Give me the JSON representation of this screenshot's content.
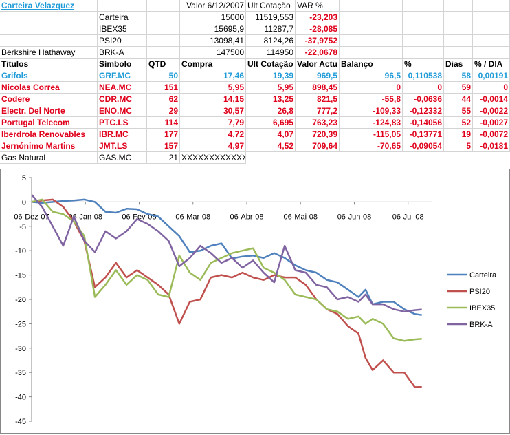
{
  "sheet": {
    "title": "Carteira Velazquez",
    "header_values": {
      "valor": "Valor 6/12/2007",
      "ult": "Ult Cotação",
      "var": "VAR %"
    },
    "summary": [
      {
        "name": "",
        "symbol": "Carteira",
        "valor": "15000",
        "ult": "11519,553",
        "var": "-23,203"
      },
      {
        "name": "",
        "symbol": "IBEX35",
        "valor": "15695,9",
        "ult": "11287,7",
        "var": "-28,085"
      },
      {
        "name": "",
        "symbol": "PSI20",
        "valor": "13098,41",
        "ult": "8124,26",
        "var": "-37,9752"
      },
      {
        "name": "Berkshire Hathaway",
        "symbol": "BRK-A",
        "valor": "147500",
        "ult": "114950",
        "var": "-22,0678"
      }
    ],
    "columns": [
      "Titulos",
      "Símbolo",
      "QTD",
      "Compra",
      "Ult Cotação",
      "Valor Actu",
      "Balanço",
      "%",
      "Dias",
      "% / DIA"
    ],
    "rows": [
      {
        "name": "Grifols",
        "symbol": "GRF.MC",
        "qtd": "50",
        "compra": "17,46",
        "ult": "19,39",
        "valor": "969,5",
        "balanco": "96,5",
        "pct": "0,110538",
        "dias": "58",
        "pctdia": "0,00191",
        "color": "blue"
      },
      {
        "name": "Nicolas Correa",
        "symbol": "NEA.MC",
        "qtd": "151",
        "compra": "5,95",
        "ult": "5,95",
        "valor": "898,45",
        "balanco": "0",
        "pct": "0",
        "dias": "59",
        "pctdia": "0",
        "color": "red"
      },
      {
        "name": "Codere",
        "symbol": "CDR.MC",
        "qtd": "62",
        "compra": "14,15",
        "ult": "13,25",
        "valor": "821,5",
        "balanco": "-55,8",
        "pct": "-0,0636",
        "dias": "44",
        "pctdia": "-0,0014",
        "color": "red"
      },
      {
        "name": "Electr. Del Norte",
        "symbol": "ENO.MC",
        "qtd": "29",
        "compra": "30,57",
        "ult": "26,8",
        "valor": "777,2",
        "balanco": "-109,33",
        "pct": "-0,12332",
        "dias": "55",
        "pctdia": "-0,0022",
        "color": "red"
      },
      {
        "name": "Portugal Telecom",
        "symbol": "PTC.LS",
        "qtd": "114",
        "compra": "7,79",
        "ult": "6,695",
        "valor": "763,23",
        "balanco": "-124,83",
        "pct": "-0,14056",
        "dias": "52",
        "pctdia": "-0,0027",
        "color": "red"
      },
      {
        "name": "Iberdrola Renovables",
        "symbol": "IBR.MC",
        "qtd": "177",
        "compra": "4,72",
        "ult": "4,07",
        "valor": "720,39",
        "balanco": "-115,05",
        "pct": "-0,13771",
        "dias": "19",
        "pctdia": "-0,0072",
        "color": "red"
      },
      {
        "name": "Jernónimo Martins",
        "symbol": "JMT.LS",
        "qtd": "157",
        "compra": "4,97",
        "ult": "4,52",
        "valor": "709,64",
        "balanco": "-70,65",
        "pct": "-0,09054",
        "dias": "5",
        "pctdia": "-0,0181",
        "color": "red"
      }
    ],
    "gas": {
      "name": "Gas Natural",
      "symbol": "GAS.MC",
      "qtd": "21",
      "compra": "XXXXXXXXXXXXX"
    }
  },
  "colors": {
    "carteira": "#4f81bd",
    "psi20": "#c0504d",
    "ibex35": "#9bbb59",
    "brka": "#8064a2",
    "blue_text": "#1f9bd8",
    "red_text": "#e0001b"
  },
  "chart_data": {
    "type": "line",
    "title": "",
    "ylim": [
      -45,
      5
    ],
    "yticks": [
      5,
      0,
      -5,
      -10,
      -15,
      -20,
      -25,
      -30,
      -35,
      -40,
      -45
    ],
    "xticks": [
      "06-Dez-07",
      "06-Jan-08",
      "06-Fev-08",
      "06-Mar-08",
      "06-Abr-08",
      "06-Mai-08",
      "06-Jun-08",
      "06-Jul-08"
    ],
    "xrange": [
      0,
      228
    ],
    "series": [
      {
        "name": "Carteira",
        "key": "carteira",
        "points": [
          [
            0,
            0
          ],
          [
            6,
            -0.2
          ],
          [
            12,
            0
          ],
          [
            18,
            0.2
          ],
          [
            24,
            0.3
          ],
          [
            30,
            0.5
          ],
          [
            36,
            0
          ],
          [
            42,
            -2
          ],
          [
            48,
            -2.2
          ],
          [
            54,
            -1.4
          ],
          [
            60,
            -1.5
          ],
          [
            66,
            -2.5
          ],
          [
            72,
            -3
          ],
          [
            78,
            -5
          ],
          [
            84,
            -7
          ],
          [
            90,
            -10.3
          ],
          [
            96,
            -10
          ],
          [
            102,
            -9
          ],
          [
            108,
            -8.5
          ],
          [
            114,
            -11.6
          ],
          [
            120,
            -11.2
          ],
          [
            126,
            -11
          ],
          [
            132,
            -11.5
          ],
          [
            138,
            -10.5
          ],
          [
            144,
            -11.5
          ],
          [
            150,
            -13
          ],
          [
            156,
            -14
          ],
          [
            162,
            -14.5
          ],
          [
            168,
            -16
          ],
          [
            174,
            -16.5
          ],
          [
            180,
            -18
          ],
          [
            186,
            -19.5
          ],
          [
            190,
            -18
          ],
          [
            194,
            -21
          ],
          [
            200,
            -20.5
          ],
          [
            206,
            -20.5
          ],
          [
            212,
            -22
          ],
          [
            218,
            -23
          ],
          [
            222,
            -23.2
          ]
        ]
      },
      {
        "name": "PSI20",
        "key": "psi20",
        "points": [
          [
            0,
            0
          ],
          [
            6,
            0.3
          ],
          [
            12,
            0.5
          ],
          [
            18,
            -1
          ],
          [
            24,
            -4
          ],
          [
            30,
            -8
          ],
          [
            36,
            -17.5
          ],
          [
            42,
            -15.5
          ],
          [
            48,
            -12.5
          ],
          [
            54,
            -15.5
          ],
          [
            60,
            -14
          ],
          [
            66,
            -15.5
          ],
          [
            72,
            -17
          ],
          [
            78,
            -19
          ],
          [
            84,
            -25
          ],
          [
            90,
            -20.5
          ],
          [
            96,
            -20
          ],
          [
            102,
            -15.5
          ],
          [
            108,
            -15
          ],
          [
            114,
            -15.5
          ],
          [
            120,
            -14.5
          ],
          [
            126,
            -15.5
          ],
          [
            132,
            -16
          ],
          [
            138,
            -15
          ],
          [
            144,
            -15.5
          ],
          [
            150,
            -15.5
          ],
          [
            156,
            -17
          ],
          [
            162,
            -20
          ],
          [
            168,
            -22
          ],
          [
            174,
            -23
          ],
          [
            180,
            -25.5
          ],
          [
            186,
            -27
          ],
          [
            190,
            -32
          ],
          [
            194,
            -34.5
          ],
          [
            200,
            -32.5
          ],
          [
            206,
            -35
          ],
          [
            212,
            -35
          ],
          [
            218,
            -38
          ],
          [
            222,
            -37.9752
          ]
        ]
      },
      {
        "name": "IBEX35",
        "key": "ibex35",
        "points": [
          [
            0,
            0
          ],
          [
            6,
            0.5
          ],
          [
            12,
            -2
          ],
          [
            18,
            -2.5
          ],
          [
            24,
            -4
          ],
          [
            30,
            -7
          ],
          [
            36,
            -19.5
          ],
          [
            42,
            -17
          ],
          [
            48,
            -14
          ],
          [
            54,
            -17
          ],
          [
            60,
            -15
          ],
          [
            66,
            -16
          ],
          [
            72,
            -19
          ],
          [
            78,
            -19.5
          ],
          [
            84,
            -11
          ],
          [
            90,
            -14.5
          ],
          [
            96,
            -16
          ],
          [
            102,
            -12.5
          ],
          [
            108,
            -11.5
          ],
          [
            114,
            -10.5
          ],
          [
            120,
            -10
          ],
          [
            126,
            -9.5
          ],
          [
            132,
            -13.5
          ],
          [
            138,
            -14.5
          ],
          [
            144,
            -16
          ],
          [
            150,
            -19
          ],
          [
            156,
            -19.5
          ],
          [
            162,
            -20
          ],
          [
            168,
            -22
          ],
          [
            174,
            -22.5
          ],
          [
            180,
            -24
          ],
          [
            186,
            -23.5
          ],
          [
            190,
            -25
          ],
          [
            194,
            -24
          ],
          [
            200,
            -25
          ],
          [
            206,
            -28
          ],
          [
            212,
            -28.5
          ],
          [
            218,
            -28.2
          ],
          [
            222,
            -28.085
          ]
        ]
      },
      {
        "name": "BRK-A",
        "key": "brka",
        "points": [
          [
            0,
            1.5
          ],
          [
            6,
            -1
          ],
          [
            12,
            -5
          ],
          [
            18,
            -9
          ],
          [
            24,
            -3
          ],
          [
            30,
            -8
          ],
          [
            36,
            -10.3
          ],
          [
            42,
            -6
          ],
          [
            48,
            -7.5
          ],
          [
            54,
            -6
          ],
          [
            60,
            -3.5
          ],
          [
            66,
            -4.5
          ],
          [
            72,
            -6
          ],
          [
            78,
            -8
          ],
          [
            84,
            -13.2
          ],
          [
            90,
            -11.5
          ],
          [
            96,
            -9
          ],
          [
            102,
            -10.5
          ],
          [
            108,
            -12.5
          ],
          [
            114,
            -11.5
          ],
          [
            120,
            -13.5
          ],
          [
            126,
            -12
          ],
          [
            132,
            -14.5
          ],
          [
            138,
            -16.5
          ],
          [
            144,
            -9
          ],
          [
            150,
            -14
          ],
          [
            156,
            -14.5
          ],
          [
            162,
            -17
          ],
          [
            168,
            -17.5
          ],
          [
            174,
            -20
          ],
          [
            180,
            -19.5
          ],
          [
            186,
            -20.5
          ],
          [
            190,
            -19
          ],
          [
            194,
            -21
          ],
          [
            200,
            -21
          ],
          [
            206,
            -22
          ],
          [
            212,
            -22.5
          ],
          [
            218,
            -22.2
          ],
          [
            222,
            -22.0678
          ]
        ]
      }
    ],
    "legend": "right"
  }
}
